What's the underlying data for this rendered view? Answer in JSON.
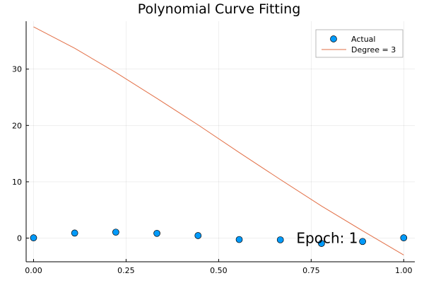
{
  "chart_data": {
    "type": "scatter",
    "title": "Polynomial Curve Fitting",
    "xlabel": "",
    "ylabel": "",
    "xlim": [
      -0.02,
      1.03
    ],
    "ylim": [
      -4.2,
      38.5
    ],
    "xticks": [
      0.0,
      0.25,
      0.5,
      0.75,
      1.0
    ],
    "xtick_labels": [
      "0.00",
      "0.25",
      "0.50",
      "0.75",
      "1.00"
    ],
    "yticks": [
      0,
      10,
      20,
      30
    ],
    "ytick_labels": [
      "0",
      "10",
      "20",
      "30"
    ],
    "grid": true,
    "legend_position": "top-right",
    "series": [
      {
        "name": "Actual",
        "kind": "scatter",
        "color": "#009AFA",
        "x": [
          0.0,
          0.1111,
          0.2222,
          0.3333,
          0.4444,
          0.5556,
          0.6667,
          0.7778,
          0.8889,
          1.0
        ],
        "y": [
          0.05,
          0.9,
          1.05,
          0.85,
          0.45,
          -0.25,
          -0.3,
          -0.95,
          -0.6,
          0.05
        ]
      },
      {
        "name": "Degree = 3",
        "kind": "line",
        "color": "#E26F46",
        "x": [
          0.0,
          0.1111,
          0.2222,
          0.3333,
          0.4444,
          0.5556,
          0.6667,
          0.7778,
          0.8889,
          1.0
        ],
        "y": [
          37.5,
          33.7,
          29.4,
          24.8,
          20.1,
          15.2,
          10.4,
          5.7,
          1.3,
          -3.0
        ]
      }
    ],
    "annotation": {
      "text": "Epoch: 1",
      "x": 0.71,
      "y": 0.0
    }
  }
}
